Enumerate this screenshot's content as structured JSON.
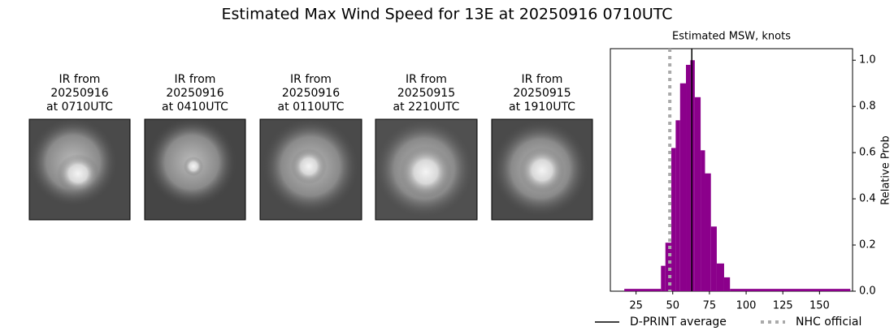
{
  "title": "Estimated Max Wind Speed for 13E at 20250916 0710UTC",
  "panels": [
    {
      "lines": [
        "IR from",
        "20250916",
        "at 0710UTC"
      ]
    },
    {
      "lines": [
        "IR from",
        "20250916",
        "at 0410UTC"
      ]
    },
    {
      "lines": [
        "IR from",
        "20250916",
        "at 0110UTC"
      ]
    },
    {
      "lines": [
        "IR from",
        "20250915",
        "at 2210UTC"
      ]
    },
    {
      "lines": [
        "IR from",
        "20250915",
        "at 1910UTC"
      ]
    }
  ],
  "chart_data": {
    "type": "histogram",
    "title": "Estimated MSW, knots",
    "ylabel": "Relative Prob",
    "bins": [
      17,
      42,
      45,
      49,
      52,
      55,
      59,
      62,
      65,
      69,
      72,
      76,
      80,
      85,
      89,
      171
    ],
    "values": [
      0.01,
      0.11,
      0.21,
      0.62,
      0.74,
      0.9,
      0.98,
      1.0,
      0.84,
      0.61,
      0.51,
      0.28,
      0.12,
      0.06,
      0.01
    ],
    "color": "#8b008b",
    "xlim": [
      7.5,
      172.5
    ],
    "xticks": [
      25,
      50,
      75,
      100,
      125,
      150
    ],
    "ylim": [
      0,
      1.05
    ],
    "yticks": [
      {
        "value": 0,
        "label": "0.0"
      },
      {
        "value": 0.2,
        "label": "0.2"
      },
      {
        "value": 0.4,
        "label": "0.4"
      },
      {
        "value": 0.6,
        "label": "0.6"
      },
      {
        "value": 0.8,
        "label": "0.8"
      },
      {
        "value": 1.0,
        "label": "1.0"
      }
    ],
    "reference_lines": [
      {
        "name": "D-PRINT average",
        "value": 63,
        "color": "#000000",
        "style": "solid"
      },
      {
        "name": "NHC official",
        "value": 48,
        "color": "#aaaaaa",
        "style": "dotted"
      }
    ]
  }
}
